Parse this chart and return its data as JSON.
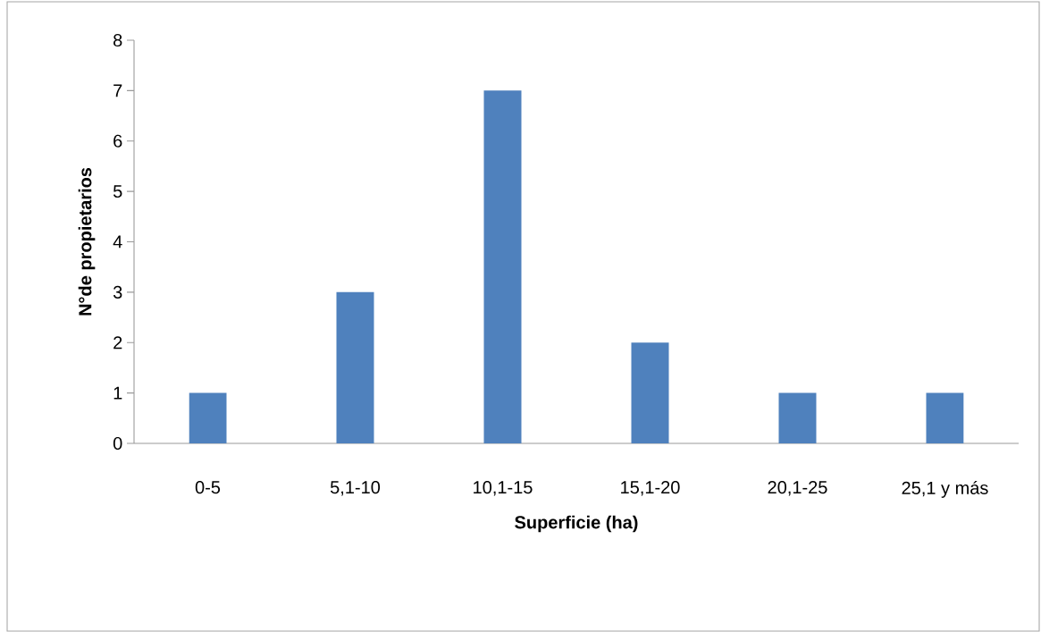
{
  "chart_data": {
    "type": "bar",
    "xlabel": "Superficie (ha)",
    "ylabel": "N°de propietarios",
    "categories": [
      "0-5",
      "5,1-10",
      "10,1-15",
      "15,1-20",
      "20,1-25",
      "25,1 y más"
    ],
    "values": [
      1,
      3,
      7,
      2,
      1,
      1
    ],
    "color": "#4f81bd",
    "ylim": [
      0,
      8
    ],
    "yticks": [
      0,
      1,
      2,
      3,
      4,
      5,
      6,
      7,
      8
    ],
    "grid": false
  }
}
